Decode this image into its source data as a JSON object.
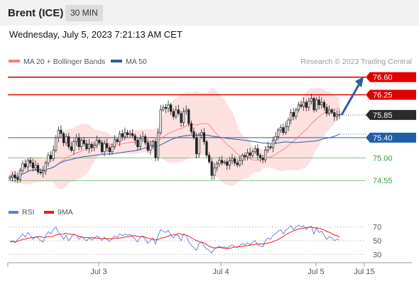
{
  "header": {
    "instrument": "Brent (ICE)",
    "timeframe": "30 MIN",
    "datetime": "Wednesday, July 5, 2023 7:21:13 AM CET"
  },
  "colors": {
    "resistance": "#e00000",
    "support": "#1f5fa8",
    "target": "#3a9a3a",
    "ma50": "#2d5b9e",
    "bollinger_fill": "#fddcdc",
    "ma20": "#f08080",
    "rsi": "#5b7fd6",
    "rsi_ma": "#e02020",
    "arrow": "#2a5ca8",
    "up_candle": "#ffffff",
    "down_candle": "#222222"
  },
  "chart_data": [
    {
      "type": "candlestick",
      "title": "",
      "legend": [
        {
          "name": "MA 20 + Bollinger Bands",
          "color": "#f08080"
        },
        {
          "name": "MA 50",
          "color": "#2d5b9e"
        }
      ],
      "legend_placement": "top-left",
      "watermark": "Research © 2023 Trading Central",
      "ylim": [
        74.3,
        76.75
      ],
      "last_price": 75.85,
      "levels": [
        {
          "value": 76.6,
          "label": "76.60",
          "kind": "resistance"
        },
        {
          "value": 76.25,
          "label": "76.25",
          "kind": "resistance"
        },
        {
          "value": 75.85,
          "label": "75.85",
          "kind": "current"
        },
        {
          "value": 75.4,
          "label": "75.40",
          "kind": "pivot"
        },
        {
          "value": 75.0,
          "label": "75.00",
          "kind": "support"
        },
        {
          "value": 74.55,
          "label": "74.55",
          "kind": "support"
        }
      ],
      "arrow": {
        "from": 75.85,
        "to": 76.55
      },
      "x_ticks": [
        "Jul 3",
        "Jul 4",
        "Jul 5",
        "Jul 15"
      ],
      "close": [
        74.62,
        74.66,
        74.6,
        74.57,
        74.75,
        74.88,
        74.82,
        74.95,
        74.9,
        74.8,
        74.85,
        74.72,
        74.7,
        74.74,
        74.9,
        75.05,
        74.98,
        75.15,
        75.4,
        75.55,
        75.48,
        75.3,
        75.42,
        75.22,
        75.15,
        75.32,
        75.4,
        75.22,
        75.35,
        75.28,
        75.18,
        75.27,
        75.2,
        75.25,
        75.35,
        75.3,
        75.12,
        75.28,
        75.2,
        75.12,
        75.22,
        75.36,
        75.32,
        75.48,
        75.42,
        75.5,
        75.46,
        75.48,
        75.44,
        75.35,
        75.22,
        75.38,
        75.42,
        75.3,
        75.15,
        75.25,
        75.32,
        75.0,
        75.5,
        75.95,
        76.0,
        75.98,
        76.05,
        75.92,
        75.82,
        75.95,
        75.88,
        75.7,
        75.92,
        75.95,
        75.68,
        75.52,
        75.4,
        75.08,
        75.45,
        75.5,
        75.32,
        75.05,
        74.92,
        74.65,
        74.8,
        74.88,
        74.95,
        74.9,
        74.92,
        74.85,
        74.94,
        74.98,
        74.9,
        74.86,
        74.95,
        75.05,
        75.02,
        75.1,
        75.05,
        75.12,
        75.18,
        75.05,
        75.0,
        74.96,
        75.15,
        75.22,
        75.2,
        75.35,
        75.42,
        75.55,
        75.6,
        75.5,
        75.62,
        75.75,
        75.9,
        75.82,
        75.95,
        76.05,
        76.02,
        76.1,
        76.0,
        76.12,
        76.18,
        75.95,
        76.15,
        76.05,
        76.1,
        76.0,
        75.88,
        75.95,
        75.9,
        75.82,
        75.86,
        75.85
      ]
    },
    {
      "type": "line",
      "title": "",
      "legend": [
        {
          "name": "RSI",
          "color": "#5b7fd6"
        },
        {
          "name": "9MA",
          "color": "#e02020"
        }
      ],
      "ylim": [
        22,
        78
      ],
      "y_ticks": [
        70,
        50,
        30
      ],
      "rsi": [
        48,
        50,
        47,
        52,
        55,
        60,
        55,
        62,
        58,
        52,
        56,
        54,
        50,
        48,
        58,
        63,
        60,
        66,
        70,
        62,
        58,
        52,
        58,
        50,
        55,
        60,
        58,
        52,
        56,
        53,
        50,
        54,
        51,
        53,
        57,
        55,
        50,
        55,
        52,
        49,
        53,
        57,
        55,
        60,
        57,
        60,
        58,
        59,
        56,
        52,
        48,
        55,
        57,
        52,
        46,
        50,
        54,
        45,
        58,
        66,
        64,
        62,
        65,
        58,
        54,
        59,
        57,
        50,
        60,
        58,
        48,
        43,
        40,
        36,
        46,
        48,
        42,
        38,
        36,
        32,
        38,
        40,
        42,
        40,
        41,
        39,
        42,
        44,
        41,
        40,
        43,
        46,
        44,
        47,
        44,
        48,
        50,
        44,
        42,
        41,
        50,
        54,
        52,
        58,
        60,
        64,
        66,
        60,
        65,
        68,
        72,
        66,
        70,
        73,
        70,
        72,
        66,
        70,
        71,
        60,
        68,
        62,
        64,
        58,
        52,
        56,
        54,
        50,
        52,
        51
      ]
    }
  ]
}
